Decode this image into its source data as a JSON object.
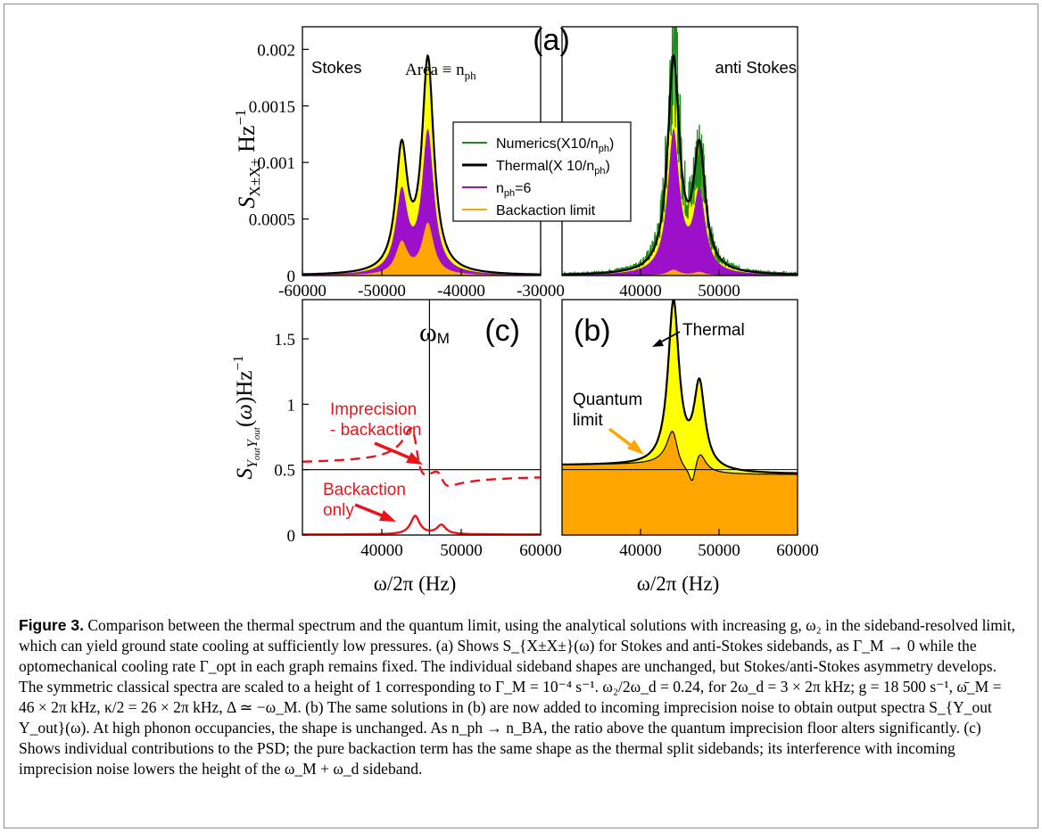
{
  "figure": {
    "panel_a_label": "(a)",
    "panel_b_label": "(b)",
    "panel_c_label": "(c)",
    "stokes_label": "Stokes",
    "anti_stokes_label": "anti Stokes",
    "area_label": "Area ≡ n",
    "area_sub": "ph",
    "omega_m_label": "ω",
    "omega_m_sub": "M",
    "thermal_annotation": "Thermal",
    "quantum_annotation_line1": "Quantum",
    "quantum_annotation_line2": "limit",
    "imprecision_line1": "Imprecision",
    "imprecision_line2": "- backaction",
    "backaction_line1": "Backaction",
    "backaction_line2": "only",
    "legend": [
      {
        "label": "Numerics(X10/n",
        "sub": "ph",
        "tail": ")",
        "color": "#1a8c1a"
      },
      {
        "label": "Thermal(X 10/n",
        "sub": "ph",
        "tail": ")",
        "color": "#000000"
      },
      {
        "label": "n",
        "sub": "ph",
        "tail": "=6",
        "color": "#9b10c8"
      },
      {
        "label": "Backaction limit",
        "sub": "",
        "tail": "",
        "color": "#ffa500"
      }
    ],
    "colors": {
      "yellow": "#ffff00",
      "purple": "#9b10c8",
      "orange": "#ffa500",
      "green": "#1a8c1a",
      "red": "#e8141c"
    }
  },
  "chart_data": [
    {
      "panel": "(a) left",
      "type": "area",
      "title": "Stokes",
      "ylabel": "S_{X±X±} Hz^{-1}",
      "xlabel": "",
      "xlim": [
        -60000,
        -30000
      ],
      "ylim": [
        0,
        0.0022
      ],
      "x_ticks": [
        "-60000",
        "-50000",
        "-40000",
        "-30000"
      ],
      "y_ticks": [
        "0",
        "0.0005",
        "0.001",
        "0.0015",
        "0.002"
      ],
      "peaks_x": [
        -47500,
        -44200
      ],
      "series": [
        {
          "name": "Thermal(X 10/n_ph)",
          "peak_values": [
            0.00107,
            0.00187
          ]
        },
        {
          "name": "n_ph=6",
          "peak_values": [
            0.0007,
            0.00125
          ]
        },
        {
          "name": "Backaction limit",
          "peak_values": [
            0.00028,
            0.00045
          ]
        }
      ]
    },
    {
      "panel": "(a) right",
      "type": "area",
      "title": "anti Stokes",
      "xlim": [
        30000,
        60000
      ],
      "ylim": [
        0,
        0.0022
      ],
      "x_ticks": [
        "40000",
        "50000"
      ],
      "peaks_x": [
        44200,
        47500
      ],
      "series": [
        {
          "name": "Numerics(X10/n_ph)",
          "peak_values": [
            0.00215,
            0.00105
          ]
        },
        {
          "name": "Thermal(X 10/n_ph)",
          "peak_values": [
            0.00187,
            0.00107
          ]
        },
        {
          "name": "n_ph=6",
          "peak_values": [
            0.00125,
            0.0007
          ]
        },
        {
          "name": "Backaction limit",
          "peak_values": [
            5e-05,
            3e-05
          ]
        }
      ]
    },
    {
      "panel": "(c)",
      "type": "line",
      "ylabel": "S_{Y_out Y_out}(ω)Hz^{-1}",
      "xlabel": "ω/2π (Hz)",
      "xlim": [
        30000,
        60000
      ],
      "ylim": [
        0,
        1.8
      ],
      "x_ticks": [
        "40000",
        "50000",
        "60000"
      ],
      "y_ticks": [
        "0",
        "0.5",
        "1",
        "1.5"
      ],
      "omega_m": 46000,
      "series": [
        {
          "name": "Imprecision - backaction",
          "peak_values": [
            0.8,
            0.6
          ]
        },
        {
          "name": "Backaction only",
          "peak_values": [
            0.14,
            0.07
          ]
        }
      ]
    },
    {
      "panel": "(b)",
      "type": "area",
      "xlabel": "ω/2π (Hz)",
      "xlim": [
        30000,
        60000
      ],
      "ylim": [
        0,
        1.8
      ],
      "x_ticks": [
        "40000",
        "50000",
        "60000"
      ],
      "series": [
        {
          "name": "Thermal",
          "peak_values": [
            1.8,
            1.18
          ]
        },
        {
          "name": "Quantum limit",
          "peak_values": [
            0.84,
            0.82
          ]
        }
      ]
    }
  ],
  "caption": {
    "heading": "Figure 3.",
    "text": " Comparison between the thermal spectrum and the quantum limit, using the analytical solutions with increasing g, ω₂ in the sideband-resolved limit, which can yield ground state cooling at sufficiently low pressures. (a) Shows S_{X±X±}(ω) for Stokes and anti-Stokes sidebands, as Γ_M → 0 while the optomechanical cooling rate Γ_opt in each graph remains fixed. The individual sideband shapes are unchanged, but Stokes/anti-Stokes asymmetry develops. The symmetric classical spectra are scaled to a height of 1 corresponding to Γ_M = 10⁻⁴ s⁻¹. ω₂/2ω_d = 0.24, for 2ω_d = 3 × 2π kHz; g = 18 500 s⁻¹, ω̄_M = 46 × 2π kHz, κ/2 = 26 × 2π kHz, Δ ≃ −ω_M. (b) The same solutions in (b) are now added to incoming imprecision noise to obtain output spectra S_{Y_out Y_out}(ω). At high phonon occupancies, the shape is unchanged. As n_ph → n_BA, the ratio above the quantum imprecision floor alters significantly. (c) Shows individual contributions to the PSD; the pure backaction term has the same shape as the thermal split sidebands; its interference with incoming imprecision noise lowers the height of the ω_M + ω_d sideband."
  }
}
